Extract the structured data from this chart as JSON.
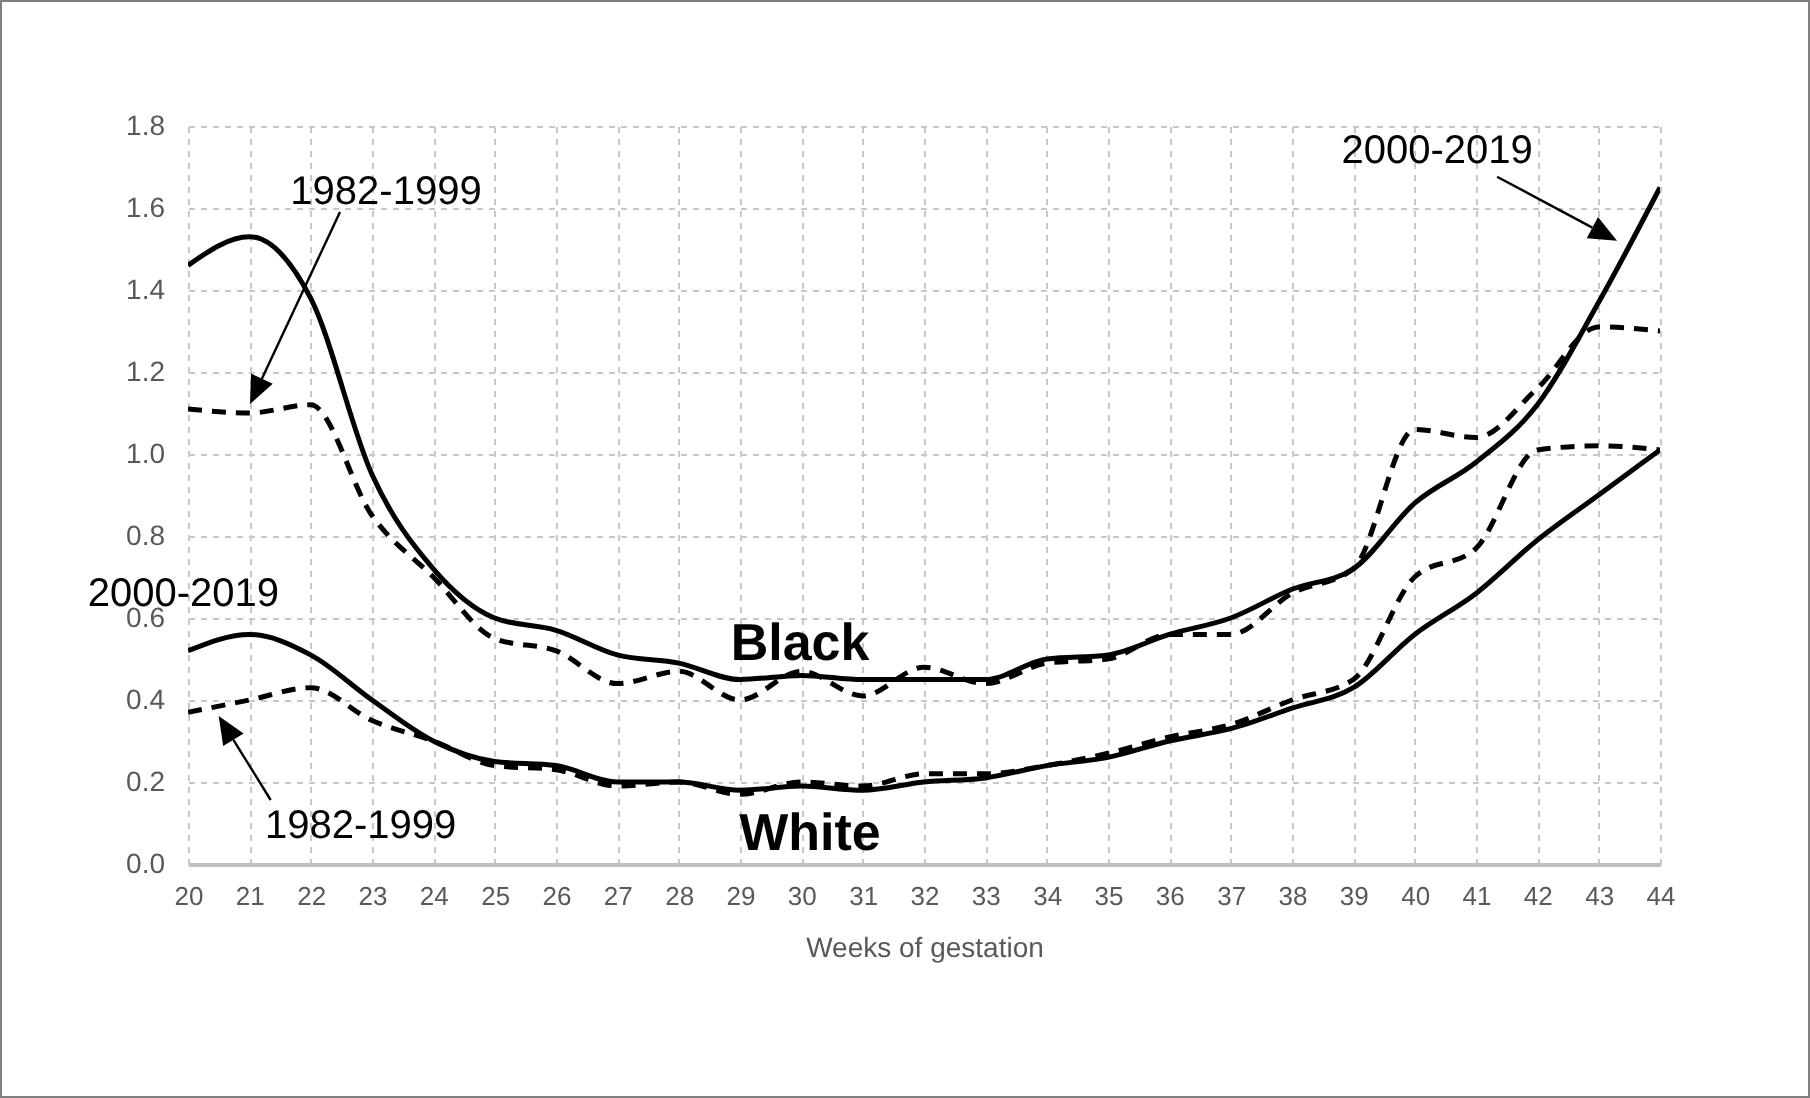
{
  "chart_data": {
    "type": "line",
    "xlabel": "Weeks of gestation",
    "x": [
      20,
      21,
      22,
      23,
      24,
      25,
      26,
      27,
      28,
      29,
      30,
      31,
      32,
      33,
      34,
      35,
      36,
      37,
      38,
      39,
      40,
      41,
      42,
      43,
      44
    ],
    "xlim": [
      20,
      44
    ],
    "xticks": [
      20,
      21,
      22,
      23,
      24,
      25,
      26,
      27,
      28,
      29,
      30,
      31,
      32,
      33,
      34,
      35,
      36,
      37,
      38,
      39,
      40,
      41,
      42,
      43,
      44
    ],
    "ylim": [
      0,
      1.8
    ],
    "yticks": [
      {
        "value": 0,
        "label": "0.0"
      },
      {
        "value": 0.2,
        "label": "0.2"
      },
      {
        "value": 0.4,
        "label": "0.4"
      },
      {
        "value": 0.6,
        "label": "0.6"
      },
      {
        "value": 0.8,
        "label": "0.8"
      },
      {
        "value": 1,
        "label": "1.0"
      },
      {
        "value": 1.2,
        "label": "1.2"
      },
      {
        "value": 1.4,
        "label": "1.4"
      },
      {
        "value": 1.6,
        "label": "1.6"
      },
      {
        "value": 1.8,
        "label": "1.8"
      }
    ],
    "grid": true,
    "series": [
      {
        "color": "#000000",
        "line_style": "solid",
        "values": [
          1.46,
          1.53,
          1.38,
          0.95,
          0.72,
          0.6,
          0.57,
          0.51,
          0.49,
          0.45,
          0.46,
          0.45,
          0.45,
          0.45,
          0.5,
          0.51,
          0.56,
          0.6,
          0.67,
          0.72,
          0.88,
          0.98,
          1.12,
          1.37,
          1.65
        ]
      },
      {
        "color": "#000000",
        "line_style": "dashed",
        "values": [
          1.11,
          1.1,
          1.12,
          0.85,
          0.7,
          0.55,
          0.52,
          0.44,
          0.47,
          0.4,
          0.47,
          0.41,
          0.48,
          0.44,
          0.49,
          0.5,
          0.56,
          0.56,
          0.66,
          0.72,
          1.06,
          1.04,
          1.16,
          1.31,
          1.3
        ]
      },
      {
        "color": "#000000",
        "line_style": "solid",
        "values": [
          0.52,
          0.56,
          0.51,
          0.4,
          0.3,
          0.25,
          0.24,
          0.2,
          0.2,
          0.18,
          0.19,
          0.18,
          0.2,
          0.21,
          0.24,
          0.26,
          0.3,
          0.33,
          0.38,
          0.43,
          0.56,
          0.66,
          0.79,
          0.9,
          1.01
        ]
      },
      {
        "color": "#000000",
        "line_style": "dashed",
        "values": [
          0.37,
          0.4,
          0.43,
          0.35,
          0.3,
          0.24,
          0.23,
          0.19,
          0.2,
          0.17,
          0.2,
          0.19,
          0.22,
          0.22,
          0.24,
          0.27,
          0.31,
          0.34,
          0.4,
          0.45,
          0.7,
          0.77,
          1.01,
          1.02,
          1.01
        ]
      }
    ],
    "annotations": [
      "1982-1999",
      {
        "text": "2000-2019",
        "x": 21,
        "y": 0.56
      },
      {
        "text": "1982-1999",
        "x": 20.5,
        "y": 0.4
      },
      {
        "text": "2000-2019",
        "x": 43.3,
        "y": 1.52
      },
      "Black",
      "White"
    ]
  }
}
